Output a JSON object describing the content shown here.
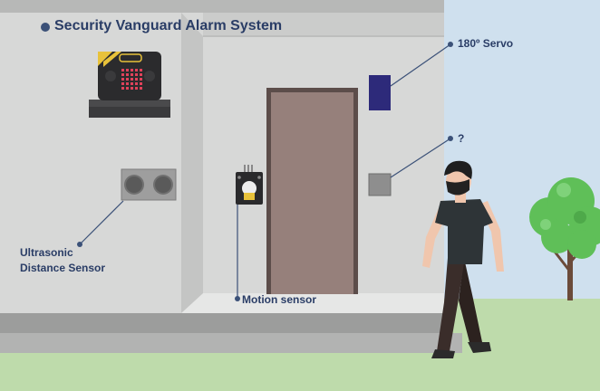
{
  "title": "Security Vanguard Alarm System",
  "labels": {
    "servo": "180º Servo",
    "unknown_component": "?",
    "ultrasonic_line1": "Ultrasonic",
    "ultrasonic_line2": "Distance Sensor",
    "motion": "Motion sensor"
  },
  "colors": {
    "sky": "#cfe0ee",
    "grass": "#bedbab",
    "wall": "#d7d8d7",
    "wall_side": "#c4c5c4",
    "door": "#96807b",
    "door_frame": "#5c4d4a",
    "servo": "#2d2a7a",
    "label_text": "#2a3d66",
    "leader_line": "#3b5178",
    "led_matrix": "#e0425a",
    "tree": "#5fbf58",
    "shirt": "#2e3437",
    "pants": "#3a2d2a",
    "skin": "#f0c6ad"
  },
  "icons": {
    "microbit": "microbit-board-icon",
    "ultrasonic": "ultrasonic-sensor-icon",
    "motion": "pir-motion-sensor-icon",
    "servo": "servo-motor-icon",
    "unknown": "unknown-module-icon",
    "person": "walking-person-icon",
    "tree": "tree-icon"
  }
}
